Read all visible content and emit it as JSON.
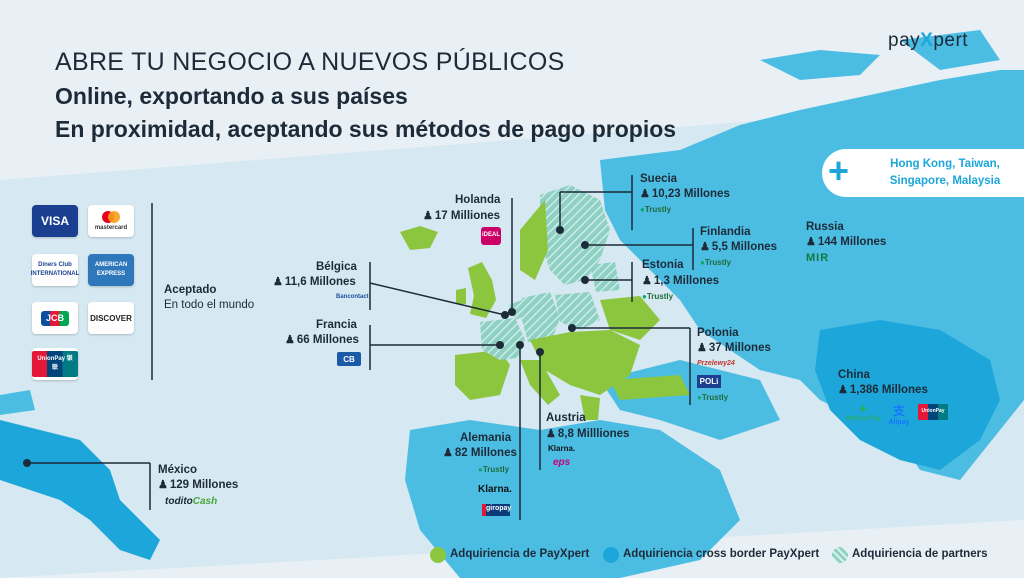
{
  "brand": {
    "prefix": "pay",
    "x": "X",
    "suffix": "pert"
  },
  "headline": {
    "line1": "ABRE TU NEGOCIO A NUEVOS PÚBLICOS",
    "line2": "Online, exportando a sus países",
    "line3": "En proximidad, aceptando sus métodos de pago propios"
  },
  "extra_regions": "Hong Kong, Taiwan, Singapore, Malaysia",
  "cards": {
    "visa": "VISA",
    "mastercard": "mastercard",
    "diners": "Diners Club INTERNATIONAL",
    "amex": "AMERICAN EXPRESS",
    "jcb": "JCB",
    "discover": "DISCOVER",
    "unionpay": "UnionPay 银联"
  },
  "accepted": {
    "line1": "Aceptado",
    "line2": "En todo el mundo"
  },
  "countries": {
    "holanda": {
      "name": "Holanda",
      "pop": "17 Milliones"
    },
    "belgica": {
      "name": "Bélgica",
      "pop": "11,6 Millones"
    },
    "francia": {
      "name": "Francia",
      "pop": "66 Millones"
    },
    "suecia": {
      "name": "Suecia",
      "pop": "10,23 Millones"
    },
    "finlandia": {
      "name": "Finlandia",
      "pop": "5,5 Millones"
    },
    "estonia": {
      "name": "Estonia",
      "pop": "1,3 Millones"
    },
    "russia": {
      "name": "Russia",
      "pop": "144 Millones"
    },
    "polonia": {
      "name": "Polonia",
      "pop": "37 Millones"
    },
    "china": {
      "name": "China",
      "pop": "1,386 Millones"
    },
    "austria": {
      "name": "Austria",
      "pop": "8,8 Millliones"
    },
    "alemania": {
      "name": "Alemania",
      "pop": "82 Millones"
    },
    "mexico": {
      "name": "México",
      "pop": "129 Millones"
    }
  },
  "methods": {
    "ideal": "iDEAL",
    "bancontact": "Bancontact",
    "cb": "CB",
    "trustly": "Trustly",
    "mir": "MIR",
    "przelewy": "Przelewy24",
    "poli": "POLi",
    "wechat": "WeChat Pay",
    "alipay": "Alipay",
    "unionpay": "UnionPay",
    "klarna": "Klarna.",
    "eps": "eps",
    "giropay": "giropay",
    "todito_a": "todito",
    "todito_b": "Cash"
  },
  "legend": {
    "payxpert": "Adquiriencia de PayXpert",
    "cross": "Adquiriencia cross border PayXpert",
    "partners": "Adquiriencia de partners"
  },
  "colors": {
    "green": "#8cc63f",
    "blue": "#1ca6d9",
    "dark": "#1d2a38",
    "sea": "#e8f0f5"
  }
}
